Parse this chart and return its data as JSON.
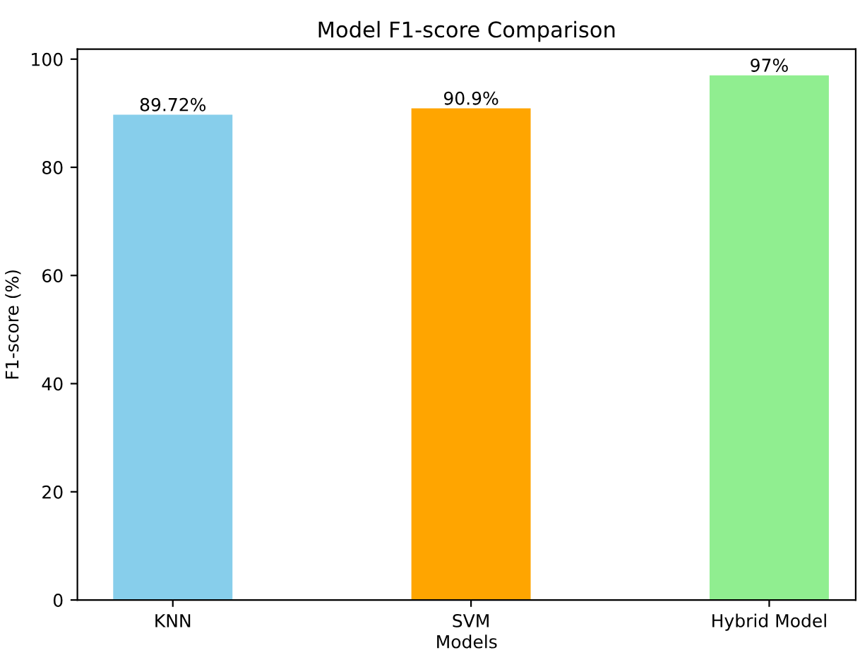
{
  "chart_data": {
    "type": "bar",
    "title": "Model F1-score Comparison",
    "xlabel": "Models",
    "ylabel": "F1-score (%)",
    "categories": [
      "KNN",
      "SVM",
      "Hybrid Model"
    ],
    "values": [
      89.72,
      90.9,
      97
    ],
    "colors": [
      "#87ceeb",
      "#ffa500",
      "#90ee90"
    ],
    "value_labels": [
      "89.72%",
      "90.9%",
      "97%"
    ],
    "ylim": [
      0,
      101.85
    ],
    "yticks": [
      0,
      20,
      40,
      60,
      80,
      100
    ],
    "grid": false,
    "legend": false
  }
}
